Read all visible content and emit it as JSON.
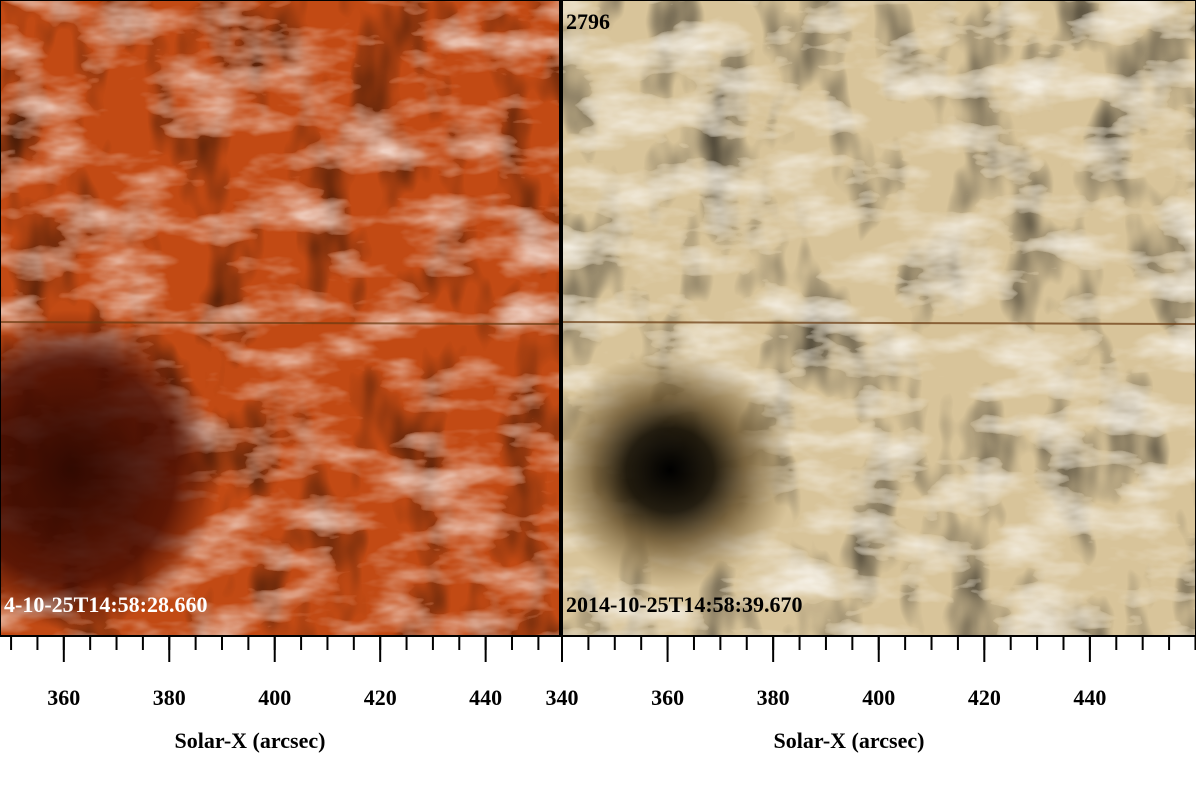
{
  "chart_data": [
    {
      "type": "image",
      "color": "#c24a14",
      "label": "4-10-25T14:58:28.660",
      "xlabel": "Solar-X (arcsec)",
      "xlim": [
        347.9,
        454.1
      ],
      "xticks": [
        360,
        380,
        400,
        420,
        440
      ]
    },
    {
      "type": "image",
      "color": "#d8c49a",
      "title": "2796",
      "label": "2014-10-25T14:58:39.670",
      "xlabel": "Solar-X (arcsec)",
      "xlim": [
        340,
        460.1
      ],
      "xticks": [
        340,
        360,
        380,
        400,
        420,
        440
      ]
    }
  ]
}
